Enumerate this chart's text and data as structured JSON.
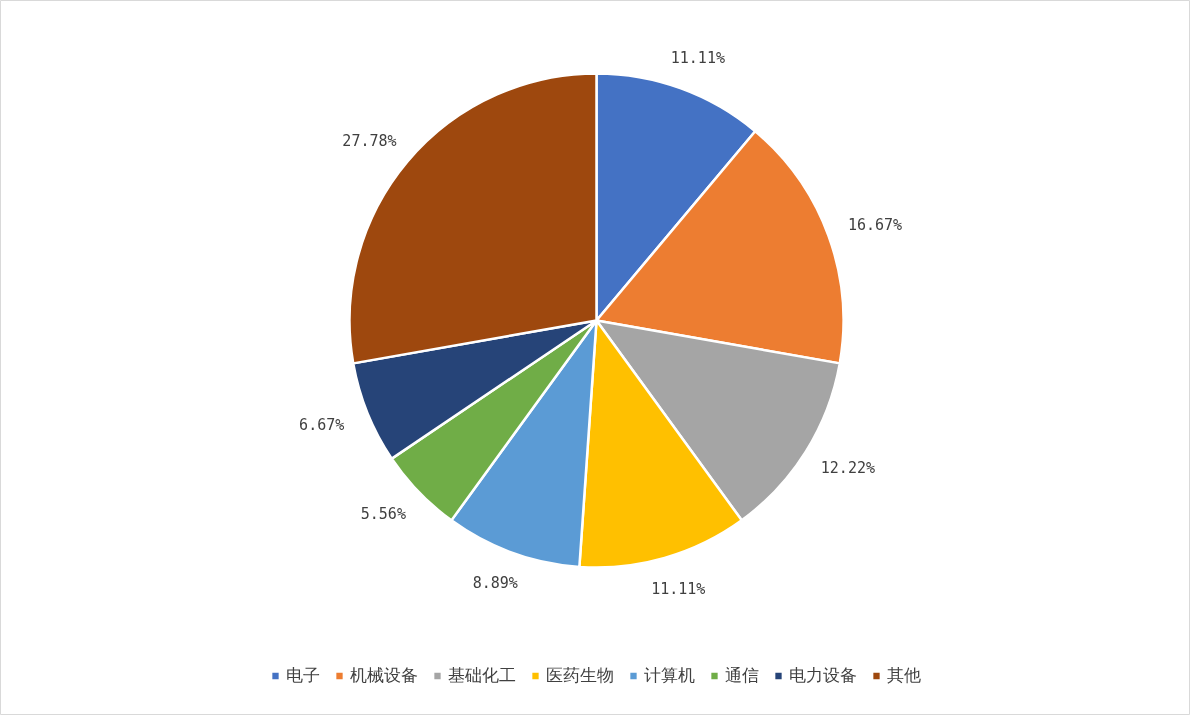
{
  "chart_data": {
    "type": "pie",
    "categories": [
      "电子",
      "机械设备",
      "基础化工",
      "医药生物",
      "计算机",
      "通信",
      "电力设备",
      "其他"
    ],
    "values": [
      11.11,
      16.67,
      12.22,
      11.11,
      8.89,
      5.56,
      6.67,
      27.78
    ],
    "colors": [
      "#4472c4",
      "#ed7d31",
      "#a5a5a5",
      "#ffc000",
      "#5b9bd5",
      "#70ad47",
      "#264478",
      "#9e480e"
    ],
    "value_labels": [
      "11.11%",
      "16.67%",
      "12.22%",
      "11.11%",
      "8.89%",
      "5.56%",
      "6.67%",
      "27.78%"
    ],
    "legend": "bottom"
  }
}
